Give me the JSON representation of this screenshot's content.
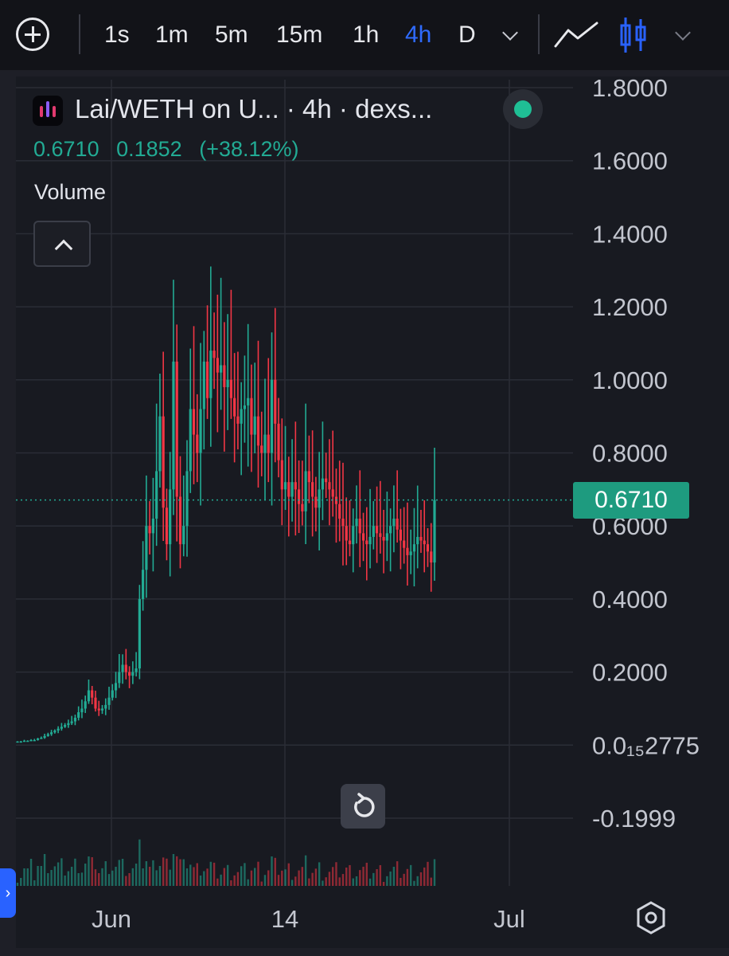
{
  "toolbar": {
    "timeframes": [
      "1s",
      "1m",
      "5m",
      "15m",
      "1h",
      "4h",
      "D"
    ],
    "active_timeframe": "4h"
  },
  "legend": {
    "title": "Lai/WETH on U...  · 4h · dexs...",
    "close": "0.6710",
    "change": "0.1852",
    "change_pct": "(+38.12%)",
    "volume_label": "Volume"
  },
  "price_tag": "0.6710",
  "colors": {
    "up": "#22ab94",
    "down": "#f23645",
    "accent": "#2f6bff",
    "background": "#181a21"
  },
  "chart_data": {
    "type": "candlestick",
    "title": "Lai/WETH on U... · 4h · dexs...",
    "y_axis": {
      "tick_labels": [
        "1.8000",
        "1.6000",
        "1.4000",
        "1.2000",
        "1.0000",
        "0.8000",
        "0.6000",
        "0.4000",
        "0.2000",
        "0.0₁₅2775",
        "-0.1999"
      ],
      "ylim": [
        -0.2,
        1.8
      ]
    },
    "x_axis": {
      "tick_labels": [
        "Jun",
        "14",
        "Jul"
      ]
    },
    "last_price": 0.671,
    "change": 0.1852,
    "change_pct": 38.12,
    "price_path": [
      0.01,
      0.01,
      0.012,
      0.012,
      0.014,
      0.014,
      0.018,
      0.02,
      0.025,
      0.03,
      0.035,
      0.04,
      0.045,
      0.05,
      0.055,
      0.06,
      0.065,
      0.075,
      0.09,
      0.1,
      0.12,
      0.15,
      0.13,
      0.1,
      0.095,
      0.1,
      0.11,
      0.13,
      0.15,
      0.17,
      0.2,
      0.22,
      0.2,
      0.19,
      0.2,
      0.21,
      0.4,
      0.48,
      0.6,
      0.58,
      0.62,
      0.75,
      0.9,
      0.65,
      0.55,
      0.7,
      1.05,
      0.68,
      0.55,
      0.6,
      0.75,
      0.92,
      0.85,
      0.8,
      0.92,
      1.05,
      0.95,
      1.08,
      1.06,
      1.02,
      1.04,
      0.98,
      1.0,
      0.95,
      0.9,
      0.88,
      0.92,
      0.93,
      0.95,
      0.85,
      0.9,
      0.82,
      0.8,
      0.85,
      0.8,
      1.0,
      0.88,
      0.78,
      0.7,
      0.72,
      0.68,
      0.72,
      0.7,
      0.66,
      0.64,
      0.75,
      0.72,
      0.68,
      0.65,
      0.7,
      0.73,
      0.72,
      0.7,
      0.68,
      0.66,
      0.62,
      0.6,
      0.56,
      0.55,
      0.6,
      0.62,
      0.58,
      0.56,
      0.55,
      0.57,
      0.6,
      0.58,
      0.57,
      0.56,
      0.58,
      0.6,
      0.62,
      0.59,
      0.56,
      0.54,
      0.52,
      0.53,
      0.55,
      0.57,
      0.56,
      0.55,
      0.53,
      0.5,
      0.671
    ],
    "volume_profile": "relative bar heights, largest spikes near the mid-June peak"
  }
}
